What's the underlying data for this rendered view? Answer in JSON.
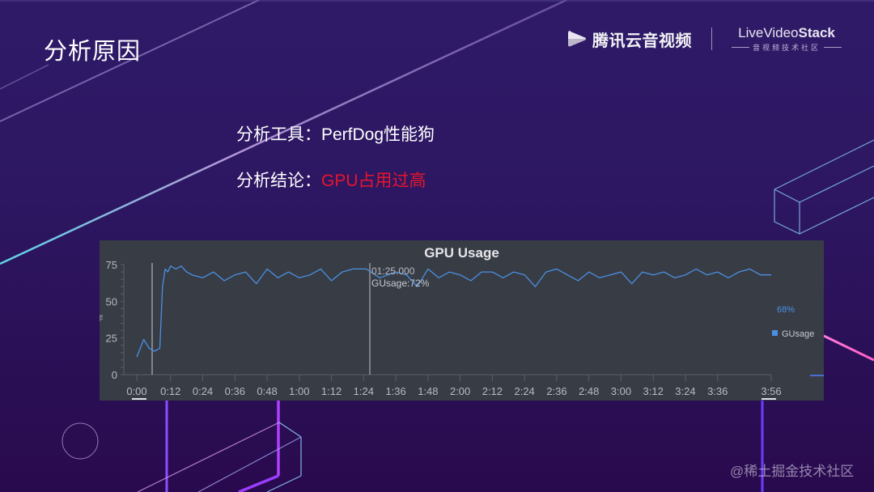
{
  "slide": {
    "title": "分析原因",
    "line1": {
      "label": "分析工具：",
      "value": "PerfDog性能狗"
    },
    "line2": {
      "label": "分析结论：",
      "value": "GPU占用过高",
      "value_color": "#e8152a"
    }
  },
  "logos": {
    "tencent": {
      "name": "腾讯云音视频",
      "icon": "play-icon"
    },
    "livevideostack": {
      "name_prefix": "LiveVideo",
      "name_suffix": "Stack",
      "subtitle": "音视频技术社区"
    }
  },
  "watermark": "@稀土掘金技术社区",
  "chart": {
    "title": "GPU Usage",
    "tooltip": {
      "time": "01:25.000",
      "value_label": "GUsage:72%"
    },
    "side_value": "68%",
    "legend": "GUsage",
    "series_color": "#4a90e2"
  },
  "chart_data": {
    "type": "line",
    "title": "GPU Usage",
    "xlabel": "",
    "ylabel": "%",
    "ylim": [
      0,
      75
    ],
    "yticks": [
      0,
      25,
      50,
      75
    ],
    "xticks": [
      "0:00",
      "0:12",
      "0:24",
      "0:36",
      "0:48",
      "1:00",
      "1:12",
      "1:24",
      "1:36",
      "1:48",
      "2:00",
      "2:12",
      "2:24",
      "2:36",
      "2:48",
      "3:00",
      "3:12",
      "3:24",
      "3:36",
      "3:56"
    ],
    "grid": false,
    "legend_position": "right",
    "series": [
      {
        "name": "GUsage",
        "x_seconds": [
          0,
          2,
          4,
          6,
          8,
          9,
          10,
          11,
          12,
          14,
          16,
          18,
          20,
          24,
          28,
          32,
          36,
          40,
          44,
          48,
          52,
          56,
          60,
          64,
          68,
          72,
          76,
          80,
          85,
          90,
          96,
          100,
          104,
          108,
          112,
          116,
          120,
          124,
          128,
          132,
          136,
          140,
          144,
          148,
          152,
          156,
          160,
          164,
          168,
          172,
          176,
          180,
          184,
          188,
          192,
          196,
          200,
          204,
          208,
          212,
          216,
          220,
          224,
          228,
          232,
          236
        ],
        "values": [
          12,
          24,
          18,
          16,
          18,
          60,
          72,
          70,
          74,
          72,
          74,
          70,
          68,
          66,
          70,
          64,
          68,
          70,
          62,
          72,
          66,
          70,
          66,
          68,
          72,
          64,
          70,
          72,
          72,
          66,
          70,
          68,
          60,
          72,
          66,
          70,
          68,
          64,
          70,
          70,
          66,
          70,
          68,
          60,
          70,
          72,
          68,
          64,
          70,
          66,
          68,
          70,
          62,
          70,
          68,
          70,
          66,
          68,
          72,
          68,
          70,
          66,
          70,
          72,
          68,
          68
        ]
      }
    ],
    "annotations": [
      {
        "x": "1:25",
        "label": "01:25.000 GUsage:72%"
      },
      {
        "label": "68%",
        "position": "right"
      }
    ]
  }
}
